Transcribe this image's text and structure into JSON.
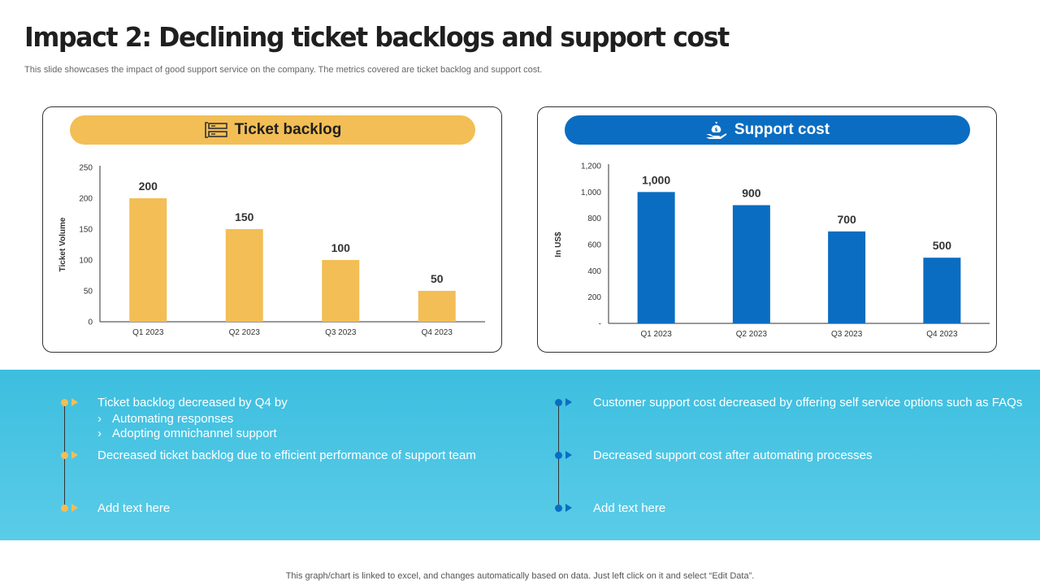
{
  "title": "Impact 2: Declining ticket backlogs and support cost",
  "subtitle": "This slide showcases the impact of good support service on the company. The metrics covered are ticket backlog and support cost.",
  "panels": {
    "left": {
      "heading": "Ticket backlog",
      "icon": "ticket-list-icon"
    },
    "right": {
      "heading": "Support cost",
      "icon": "money-hand-icon"
    }
  },
  "colors": {
    "yellow": "#F2BE55",
    "blue": "#0A6DC2",
    "band": "#4AC5E4"
  },
  "chart_data": [
    {
      "type": "bar",
      "title": "Ticket backlog",
      "categories": [
        "Q1 2023",
        "Q2 2023",
        "Q3 2023",
        "Q4 2023"
      ],
      "values": [
        200,
        150,
        100,
        50
      ],
      "value_labels": [
        "200",
        "150",
        "100",
        "50"
      ],
      "ylabel": "Ticket Volume",
      "xlabel": "",
      "ylim": [
        0,
        250
      ],
      "yticks": [
        0,
        50,
        100,
        150,
        200,
        250
      ],
      "ytick_labels": [
        "0",
        "50",
        "100",
        "150",
        "200",
        "250"
      ],
      "color": "#F2BE55",
      "grid": false,
      "legend": "none"
    },
    {
      "type": "bar",
      "title": "Support cost",
      "categories": [
        "Q1 2023",
        "Q2 2023",
        "Q3 2023",
        "Q4 2023"
      ],
      "values": [
        1000,
        900,
        700,
        500
      ],
      "value_labels": [
        "1,000",
        "900",
        "700",
        "500"
      ],
      "ylabel": "In US$",
      "xlabel": "",
      "ylim": [
        0,
        1200
      ],
      "yticks": [
        0,
        200,
        400,
        600,
        800,
        1000,
        1200
      ],
      "ytick_labels": [
        "-",
        "200",
        "400",
        "600",
        "800",
        "1,000",
        "1,200"
      ],
      "color": "#0A6DC2",
      "grid": false,
      "legend": "none"
    }
  ],
  "insights": {
    "left": [
      {
        "text": "Ticket backlog decreased by Q4 by",
        "subitems": [
          "Automating responses",
          "Adopting omnichannel support"
        ]
      },
      {
        "text": "Decreased ticket backlog due to efficient performance of support team",
        "subitems": []
      },
      {
        "text": "Add text here",
        "subitems": []
      }
    ],
    "right": [
      {
        "text": "Customer support cost decreased by offering self service options such as FAQs",
        "subitems": []
      },
      {
        "text": "Decreased support cost after automating processes",
        "subitems": []
      },
      {
        "text": "Add text here",
        "subitems": []
      }
    ],
    "sub_marker": "›"
  },
  "footer": "This graph/chart is linked to excel,  and changes automatically based on data. Just left click on it and select “Edit Data”."
}
